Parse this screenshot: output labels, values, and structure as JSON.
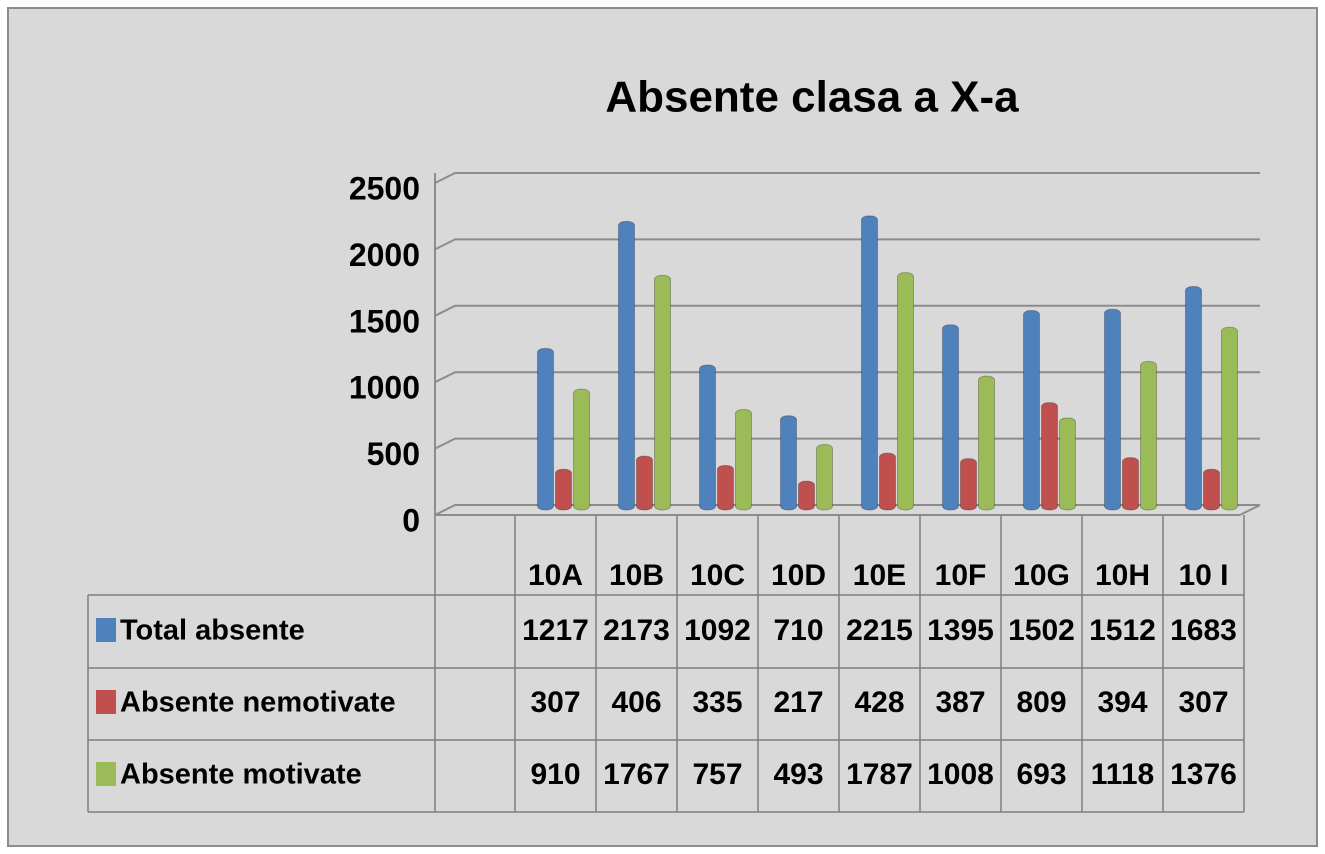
{
  "chart_data": {
    "type": "bar",
    "title": "Absente clasa a X-a",
    "categories": [
      "10A",
      "10B",
      "10C",
      "10D",
      "10E",
      "10F",
      "10G",
      "10H",
      "10 I"
    ],
    "series": [
      {
        "name": "Total absente",
        "color": "#4f81bd",
        "values": [
          1217,
          2173,
          1092,
          710,
          2215,
          1395,
          1502,
          1512,
          1683
        ]
      },
      {
        "name": "Absente nemotivate",
        "color": "#c0504d",
        "values": [
          307,
          406,
          335,
          217,
          428,
          387,
          809,
          394,
          307
        ]
      },
      {
        "name": "Absente motivate",
        "color": "#9bbb59",
        "values": [
          910,
          1767,
          757,
          493,
          1787,
          1008,
          693,
          1118,
          1376
        ]
      }
    ],
    "ylim": [
      0,
      2500
    ],
    "yticks": [
      0,
      500,
      1000,
      1500,
      2000,
      2500
    ],
    "grid": true
  }
}
